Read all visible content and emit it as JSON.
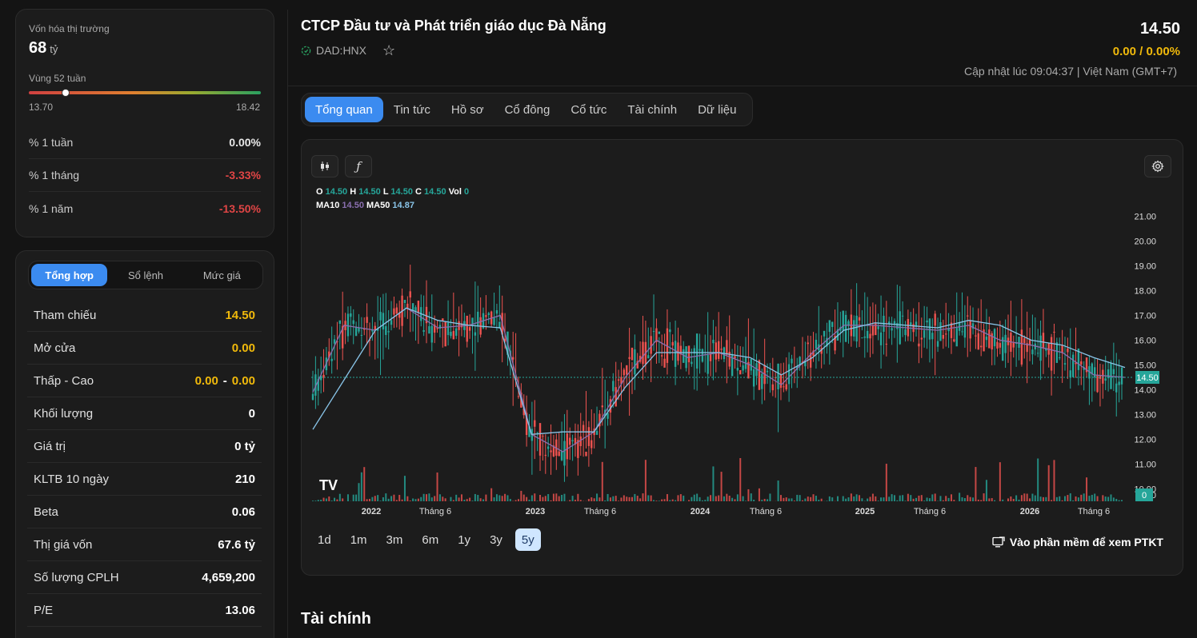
{
  "market_cap": {
    "label": "Vốn hóa thị trường",
    "value": "68",
    "unit": "tỷ"
  },
  "range_52w": {
    "label": "Vùng 52 tuần",
    "low": "13.70",
    "high": "18.42",
    "current_position": 0.16
  },
  "performance": [
    {
      "label": "% 1 tuần",
      "value": "0.00%",
      "tone": "neutral"
    },
    {
      "label": "% 1 tháng",
      "value": "-3.33%",
      "tone": "down"
    },
    {
      "label": "% 1 năm",
      "value": "-13.50%",
      "tone": "down"
    }
  ],
  "detail_tabs": [
    {
      "label": "Tổng hợp",
      "active": true
    },
    {
      "label": "Sổ lệnh",
      "active": false
    },
    {
      "label": "Mức giá",
      "active": false
    }
  ],
  "details": [
    {
      "label": "Tham chiếu",
      "value": "14.50",
      "tone": "ref"
    },
    {
      "label": "Mở cửa",
      "value": "0.00",
      "tone": "ref"
    },
    {
      "label": "Thấp - Cao",
      "value_low": "0.00",
      "separator": "-",
      "value_high": "0.00",
      "tone": "ref"
    },
    {
      "label": "Khối lượng",
      "value": "0"
    },
    {
      "label": "Giá trị",
      "value": "0 tỷ"
    },
    {
      "label": "KLTB 10 ngày",
      "value": "210"
    },
    {
      "label": "Beta",
      "value": "0.06"
    },
    {
      "label": "Thị giá vốn",
      "value": "67.6 tỷ"
    },
    {
      "label": "Số lượng CPLH",
      "value": "4,659,200"
    },
    {
      "label": "P/E",
      "value": "13.06"
    }
  ],
  "header": {
    "company_name": "CTCP Đầu tư và Phát triển giáo dục Đà Nẵng",
    "ticker": "DAD:HNX",
    "price": "14.50",
    "change": "0.00 / 0.00%",
    "updated": "Cập nhật lúc 09:04:37 | Việt Nam (GMT+7)"
  },
  "main_tabs": [
    {
      "label": "Tổng quan",
      "active": true
    },
    {
      "label": "Tin tức",
      "active": false
    },
    {
      "label": "Hồ sơ",
      "active": false
    },
    {
      "label": "Cổ đông",
      "active": false
    },
    {
      "label": "Cổ tức",
      "active": false
    },
    {
      "label": "Tài chính",
      "active": false
    },
    {
      "label": "Dữ liệu",
      "active": false
    }
  ],
  "chart": {
    "legend": {
      "o_label": "O",
      "o": "14.50",
      "h_label": "H",
      "h": "14.50",
      "l_label": "L",
      "l": "14.50",
      "c_label": "C",
      "c": "14.50",
      "vol_label": "Vol",
      "vol": "0",
      "ma10_label": "MA10",
      "ma10": "14.50",
      "ma50_label": "MA50",
      "ma50": "14.87"
    },
    "y_ticks": [
      "21.00",
      "20.00",
      "19.00",
      "18.00",
      "17.00",
      "16.00",
      "15.00",
      "14.00",
      "13.00",
      "12.00",
      "11.00",
      "10.00",
      "0.00"
    ],
    "current_price_label": "14.50",
    "volume_label": "0",
    "x_ticks": [
      "2022",
      "Tháng 6",
      "2023",
      "Tháng 6",
      "2024",
      "Tháng 6",
      "2025",
      "Tháng 6",
      "2026",
      "Tháng 6"
    ],
    "logo": "TV",
    "colors": {
      "up": "#26a69a",
      "down": "#ef5350",
      "ma10": "#8a6fb0",
      "ma50": "#89c4e8",
      "price_line": "#26a69a"
    }
  },
  "chart_data": {
    "type": "line",
    "series": [
      {
        "name": "MA10",
        "values": [
          13.9,
          16.6,
          16.4,
          17.3,
          16.5,
          16.6,
          17.0,
          12.2,
          11.5,
          12.3,
          14.5,
          16.0,
          15.3,
          15.5,
          15.0,
          14.2,
          15.5,
          16.6,
          16.6,
          16.5,
          16.4,
          16.6,
          16.0,
          15.8,
          15.5,
          14.6,
          14.5
        ]
      },
      {
        "name": "MA50",
        "values": [
          12.4,
          14.4,
          16.4,
          17.3,
          16.8,
          16.6,
          16.5,
          12.2,
          12.3,
          12.3,
          14.1,
          15.5,
          15.5,
          15.5,
          15.3,
          14.6,
          15.3,
          16.4,
          16.7,
          16.6,
          16.5,
          16.8,
          16.6,
          16.0,
          15.8,
          15.3,
          14.9
        ]
      }
    ],
    "x": [
      "2021-09",
      "2021-11",
      "2022-01",
      "2022-03",
      "2022-05",
      "2022-07",
      "2022-09",
      "2022-11",
      "2023-01",
      "2023-03",
      "2023-05",
      "2023-07",
      "2023-09",
      "2023-11",
      "2024-01",
      "2024-03",
      "2024-05",
      "2024-07",
      "2024-09",
      "2024-11",
      "2025-01",
      "2025-03",
      "2025-05",
      "2025-07",
      "2025-09",
      "2025-11",
      "2026-01"
    ],
    "ylim": [
      9.5,
      21.5
    ]
  },
  "periods": [
    {
      "label": "1d",
      "active": false
    },
    {
      "label": "1m",
      "active": false
    },
    {
      "label": "3m",
      "active": false
    },
    {
      "label": "6m",
      "active": false
    },
    {
      "label": "1y",
      "active": false
    },
    {
      "label": "3y",
      "active": false
    },
    {
      "label": "5y",
      "active": true
    }
  ],
  "ptkt_link": "Vào phần mềm để xem PTKT",
  "section_title": "Tài chính"
}
